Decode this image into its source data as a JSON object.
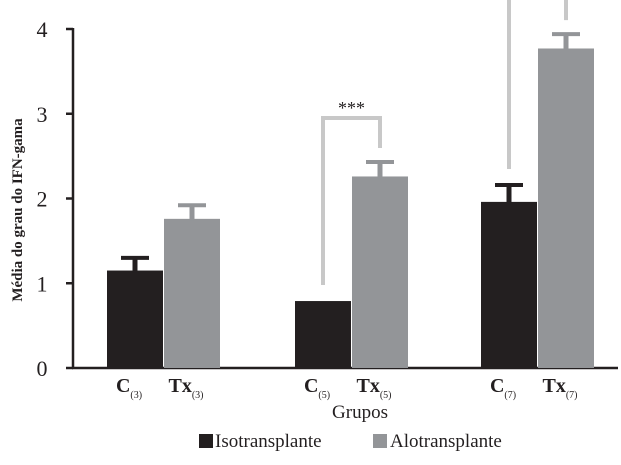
{
  "chart_data": {
    "type": "bar",
    "title": "",
    "ylabel": "Média do grau do IFN-gama",
    "xlabel": "Grupos",
    "ylim": [
      0,
      4
    ],
    "yticks": [
      "0",
      "1",
      "2",
      "3",
      "4"
    ],
    "categories": [
      {
        "main": "C",
        "sub": "(3)"
      },
      {
        "main": "Tx",
        "sub": "(3)"
      },
      {
        "main": "C",
        "sub": "(5)"
      },
      {
        "main": "Tx",
        "sub": "(5)"
      },
      {
        "main": "C",
        "sub": "(7)"
      },
      {
        "main": "Tx",
        "sub": "(7)"
      }
    ],
    "bars": [
      {
        "group": 0,
        "series": 0,
        "value": 1.15,
        "error": 0.15
      },
      {
        "group": 0,
        "series": 1,
        "value": 1.76,
        "error": 0.16
      },
      {
        "group": 1,
        "series": 0,
        "value": 0.79,
        "error": 0
      },
      {
        "group": 1,
        "series": 1,
        "value": 2.26,
        "error": 0.17
      },
      {
        "group": 2,
        "series": 0,
        "value": 1.96,
        "error": 0.2
      },
      {
        "group": 2,
        "series": 1,
        "value": 3.77,
        "error": 0.17
      }
    ],
    "series": [
      {
        "name": "Isotransplante",
        "color": "#231f20"
      },
      {
        "name": "Alotransplante",
        "color": "#939598"
      }
    ],
    "significance": [
      {
        "group": 1,
        "label": "***"
      },
      {
        "group": 2,
        "label": "***"
      }
    ],
    "legend_position": "bottom",
    "grid": false
  }
}
